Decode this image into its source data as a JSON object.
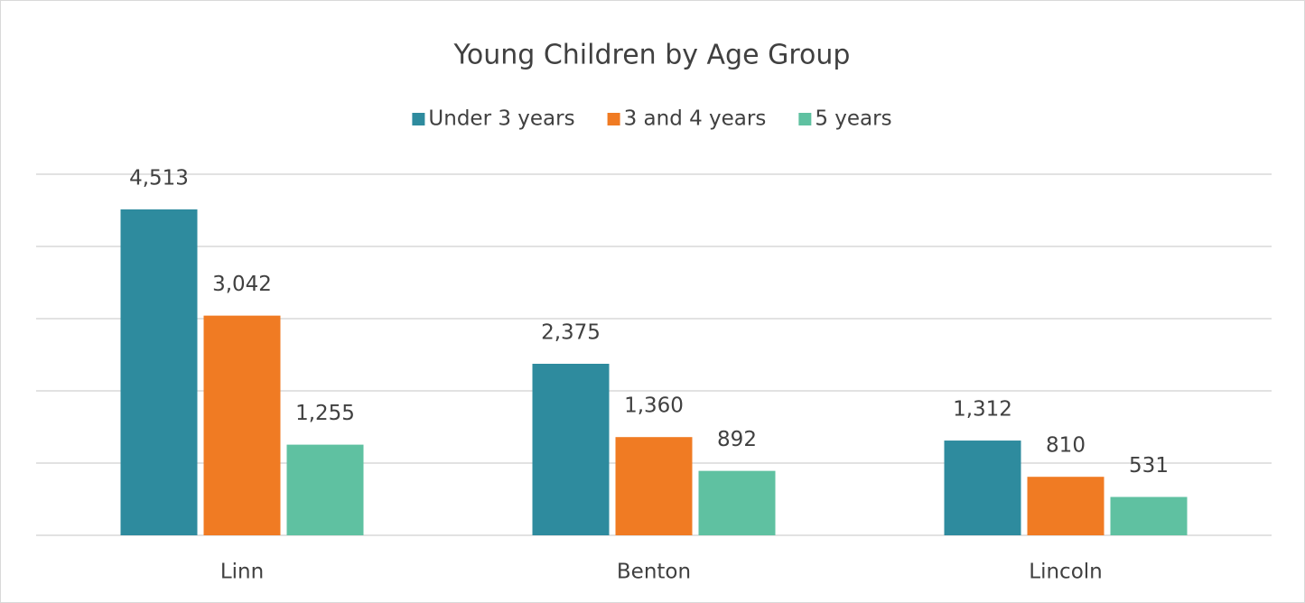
{
  "chart_data": {
    "type": "bar",
    "title": "Young Children by Age Group",
    "categories": [
      "Linn",
      "Benton",
      "Lincoln"
    ],
    "series": [
      {
        "name": "Under 3 years",
        "color": "#2e8b9e",
        "values": [
          4513,
          2375,
          1312
        ],
        "value_labels": [
          "4,513",
          "2,375",
          "1,312"
        ]
      },
      {
        "name": "3 and 4 years",
        "color": "#f07b23",
        "values": [
          3042,
          1360,
          810
        ],
        "value_labels": [
          "3,042",
          "1,360",
          "810"
        ]
      },
      {
        "name": "5 years",
        "color": "#5fc1a1",
        "values": [
          1255,
          892,
          531
        ],
        "value_labels": [
          "1,255",
          "892",
          "531"
        ]
      }
    ],
    "ylim": [
      0,
      5000
    ],
    "yticks": [
      0,
      1000,
      2000,
      3000,
      4000,
      5000
    ],
    "grid": true,
    "legend": "top"
  }
}
